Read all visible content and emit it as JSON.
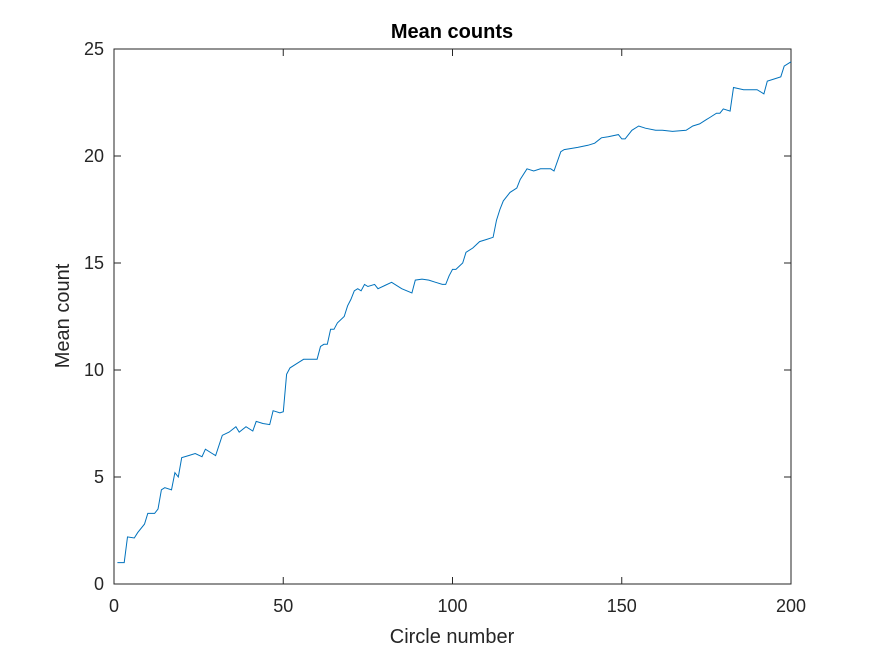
{
  "chart_data": {
    "type": "line",
    "title": "Mean counts",
    "xlabel": "Circle number",
    "ylabel": "Mean count",
    "xlim": [
      0,
      200
    ],
    "ylim": [
      0,
      25
    ],
    "xticks": [
      0,
      50,
      100,
      150,
      200
    ],
    "yticks": [
      0,
      5,
      10,
      15,
      20,
      25
    ],
    "grid": false,
    "line_color": "#0072BD",
    "series": [
      {
        "x": [
          1,
          3,
          4,
          6,
          7,
          9,
          10,
          12,
          13,
          14,
          15,
          17,
          18,
          19,
          20,
          22,
          24,
          26,
          27,
          29,
          30,
          32,
          34,
          36,
          37,
          39,
          41,
          42,
          44,
          46,
          47,
          49,
          50,
          51,
          52,
          54,
          56,
          58,
          60,
          61,
          62,
          63,
          64,
          65,
          66,
          68,
          69,
          70,
          71,
          72,
          73,
          74,
          75,
          77,
          78,
          80,
          82,
          85,
          88,
          89,
          91,
          93,
          95,
          97,
          98,
          99,
          100,
          101,
          103,
          104,
          106,
          108,
          110,
          112,
          113,
          114,
          115,
          117,
          119,
          120,
          122,
          124,
          126,
          129,
          130,
          132,
          133,
          135,
          137,
          140,
          142,
          144,
          146,
          149,
          150,
          151,
          153,
          155,
          157,
          160,
          162,
          165,
          169,
          171,
          173,
          175,
          176,
          178,
          179,
          180,
          182,
          183,
          186,
          188,
          190,
          192,
          193,
          195,
          197,
          198,
          200
        ],
        "y": [
          1.0,
          1.0,
          2.2,
          2.15,
          2.4,
          2.8,
          3.3,
          3.3,
          3.5,
          4.4,
          4.5,
          4.4,
          5.2,
          5.0,
          5.9,
          6.0,
          6.1,
          5.95,
          6.3,
          6.1,
          6.0,
          6.95,
          7.1,
          7.35,
          7.1,
          7.35,
          7.15,
          7.6,
          7.5,
          7.45,
          8.1,
          8.0,
          8.05,
          9.8,
          10.1,
          10.3,
          10.5,
          10.5,
          10.5,
          11.1,
          11.2,
          11.2,
          11.9,
          11.9,
          12.2,
          12.5,
          13.0,
          13.3,
          13.7,
          13.8,
          13.7,
          14.0,
          13.9,
          14.0,
          13.8,
          13.95,
          14.1,
          13.8,
          13.6,
          14.2,
          14.25,
          14.2,
          14.1,
          14.0,
          14.0,
          14.4,
          14.7,
          14.7,
          15.0,
          15.5,
          15.7,
          16.0,
          16.1,
          16.2,
          17.0,
          17.5,
          17.9,
          18.3,
          18.5,
          18.9,
          19.4,
          19.3,
          19.4,
          19.4,
          19.3,
          20.2,
          20.3,
          20.35,
          20.4,
          20.5,
          20.6,
          20.85,
          20.9,
          21.0,
          20.8,
          20.8,
          21.2,
          21.4,
          21.3,
          21.2,
          21.2,
          21.15,
          21.2,
          21.4,
          21.5,
          21.7,
          21.8,
          22.0,
          22.0,
          22.2,
          22.1,
          23.2,
          23.1,
          23.1,
          23.1,
          22.9,
          23.5,
          23.6,
          23.7,
          24.2,
          24.4
        ]
      }
    ]
  }
}
